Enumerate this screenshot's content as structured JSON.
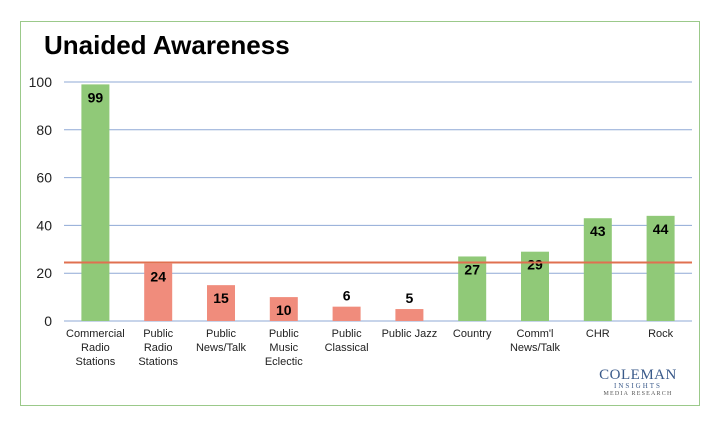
{
  "chart_data": {
    "type": "bar",
    "title": "Unaided Awareness",
    "categories": [
      [
        "Commercial",
        "Radio",
        "Stations"
      ],
      [
        "Public",
        "Radio",
        "Stations"
      ],
      [
        "Public",
        "News/Talk"
      ],
      [
        "Public",
        "Music",
        "Eclectic"
      ],
      [
        "Public",
        "Classical"
      ],
      [
        "Public Jazz"
      ],
      [
        "Country"
      ],
      [
        "Comm'l",
        "News/Talk"
      ],
      [
        "CHR"
      ],
      [
        "Rock"
      ]
    ],
    "values": [
      99,
      24,
      15,
      10,
      6,
      5,
      27,
      29,
      43,
      44
    ],
    "data_labels": [
      "99",
      "24",
      "15",
      "10",
      "6",
      "5",
      "27",
      "29",
      "43",
      "44"
    ],
    "bar_colors": [
      "#90c978",
      "#f08c7c",
      "#f08c7c",
      "#f08c7c",
      "#f08c7c",
      "#f08c7c",
      "#90c978",
      "#90c978",
      "#90c978",
      "#90c978"
    ],
    "ylim": [
      0,
      100
    ],
    "yticks": [
      "0",
      "20",
      "40",
      "60",
      "80",
      "100"
    ],
    "reference_line": {
      "value": 24.5,
      "color": "#e07050"
    },
    "grid": true,
    "gridline_color": "#8fa9d6"
  },
  "logo": {
    "line1": "COLEMAN",
    "line2": "INSIGHTS",
    "line3": "MEDIA RESEARCH"
  }
}
